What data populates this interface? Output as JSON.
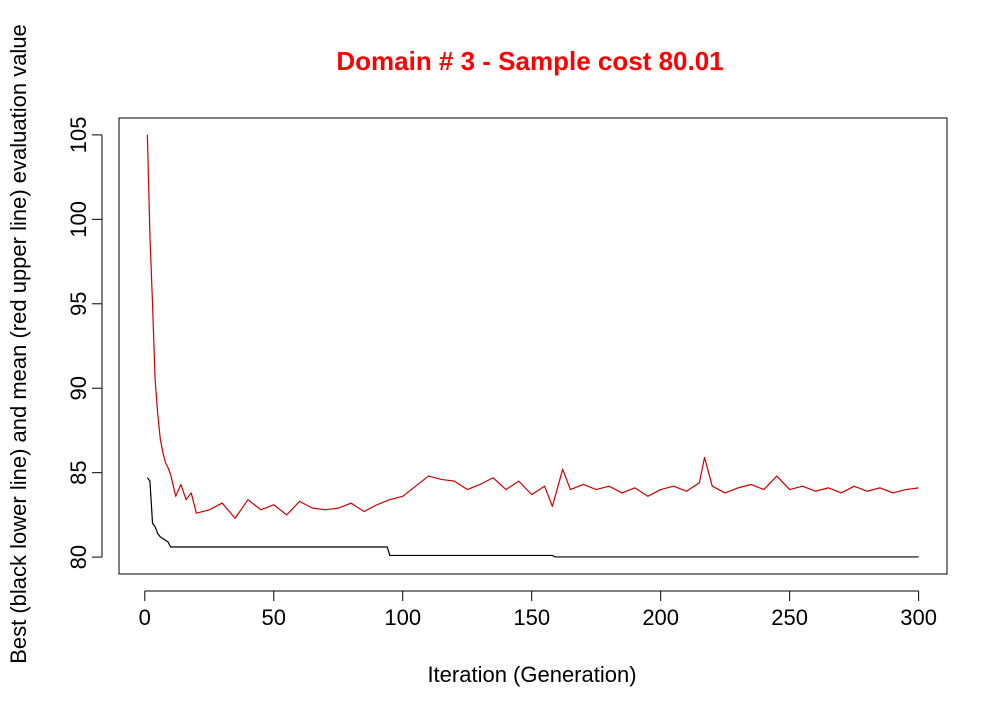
{
  "chart_data": {
    "type": "line",
    "title": "Domain # 3  - Sample cost 80.01",
    "xlabel": "Iteration (Generation)",
    "ylabel": "Best (black lower line) and mean (red upper line) evaluation value",
    "xlim": [
      -10,
      311
    ],
    "ylim": [
      79.0,
      106.0
    ],
    "x_ticks": [
      0,
      50,
      100,
      150,
      200,
      250,
      300
    ],
    "y_ticks": [
      80,
      85,
      90,
      95,
      100,
      105
    ],
    "x_tick_labels": [
      "0",
      "50",
      "100",
      "150",
      "200",
      "250",
      "300"
    ],
    "y_tick_labels": [
      "80",
      "85",
      "90",
      "95",
      "100",
      "105"
    ],
    "grid": false,
    "colors": {
      "title": "#ff0000",
      "best": "#000000",
      "mean": "#cc0000",
      "axis": "#000000"
    },
    "series": [
      {
        "key": "best",
        "points": [
          [
            1,
            84.7
          ],
          [
            2,
            84.5
          ],
          [
            3,
            82.0
          ],
          [
            4,
            81.8
          ],
          [
            5,
            81.4
          ],
          [
            6,
            81.2
          ],
          [
            7,
            81.1
          ],
          [
            8,
            81.0
          ],
          [
            9,
            80.9
          ],
          [
            10,
            80.6
          ],
          [
            94,
            80.6
          ],
          [
            95,
            80.1
          ],
          [
            158,
            80.1
          ],
          [
            159,
            80.01
          ],
          [
            300,
            80.01
          ]
        ]
      },
      {
        "key": "mean",
        "points": [
          [
            1,
            105.0
          ],
          [
            2,
            99.0
          ],
          [
            3,
            95.0
          ],
          [
            4,
            90.5
          ],
          [
            5,
            88.5
          ],
          [
            6,
            87.0
          ],
          [
            7,
            86.2
          ],
          [
            8,
            85.6
          ],
          [
            9,
            85.3
          ],
          [
            10,
            84.9
          ],
          [
            12,
            83.6
          ],
          [
            14,
            84.3
          ],
          [
            16,
            83.4
          ],
          [
            18,
            83.8
          ],
          [
            20,
            82.6
          ],
          [
            25,
            82.8
          ],
          [
            30,
            83.2
          ],
          [
            35,
            82.3
          ],
          [
            40,
            83.4
          ],
          [
            45,
            82.8
          ],
          [
            50,
            83.1
          ],
          [
            55,
            82.5
          ],
          [
            60,
            83.3
          ],
          [
            65,
            82.9
          ],
          [
            70,
            82.8
          ],
          [
            75,
            82.9
          ],
          [
            80,
            83.2
          ],
          [
            85,
            82.7
          ],
          [
            90,
            83.1
          ],
          [
            95,
            83.4
          ],
          [
            100,
            83.6
          ],
          [
            105,
            84.2
          ],
          [
            110,
            84.8
          ],
          [
            115,
            84.6
          ],
          [
            120,
            84.5
          ],
          [
            125,
            84.0
          ],
          [
            130,
            84.3
          ],
          [
            135,
            84.7
          ],
          [
            140,
            84.0
          ],
          [
            145,
            84.5
          ],
          [
            150,
            83.7
          ],
          [
            155,
            84.2
          ],
          [
            158,
            83.0
          ],
          [
            162,
            85.2
          ],
          [
            165,
            84.0
          ],
          [
            170,
            84.3
          ],
          [
            175,
            84.0
          ],
          [
            180,
            84.2
          ],
          [
            185,
            83.8
          ],
          [
            190,
            84.1
          ],
          [
            195,
            83.6
          ],
          [
            200,
            84.0
          ],
          [
            205,
            84.2
          ],
          [
            210,
            83.9
          ],
          [
            215,
            84.4
          ],
          [
            217,
            85.9
          ],
          [
            220,
            84.2
          ],
          [
            225,
            83.8
          ],
          [
            230,
            84.1
          ],
          [
            235,
            84.3
          ],
          [
            240,
            84.0
          ],
          [
            245,
            84.8
          ],
          [
            250,
            84.0
          ],
          [
            255,
            84.2
          ],
          [
            260,
            83.9
          ],
          [
            265,
            84.1
          ],
          [
            270,
            83.8
          ],
          [
            275,
            84.2
          ],
          [
            280,
            83.9
          ],
          [
            285,
            84.1
          ],
          [
            290,
            83.8
          ],
          [
            295,
            84.0
          ],
          [
            300,
            84.1
          ]
        ]
      }
    ]
  }
}
